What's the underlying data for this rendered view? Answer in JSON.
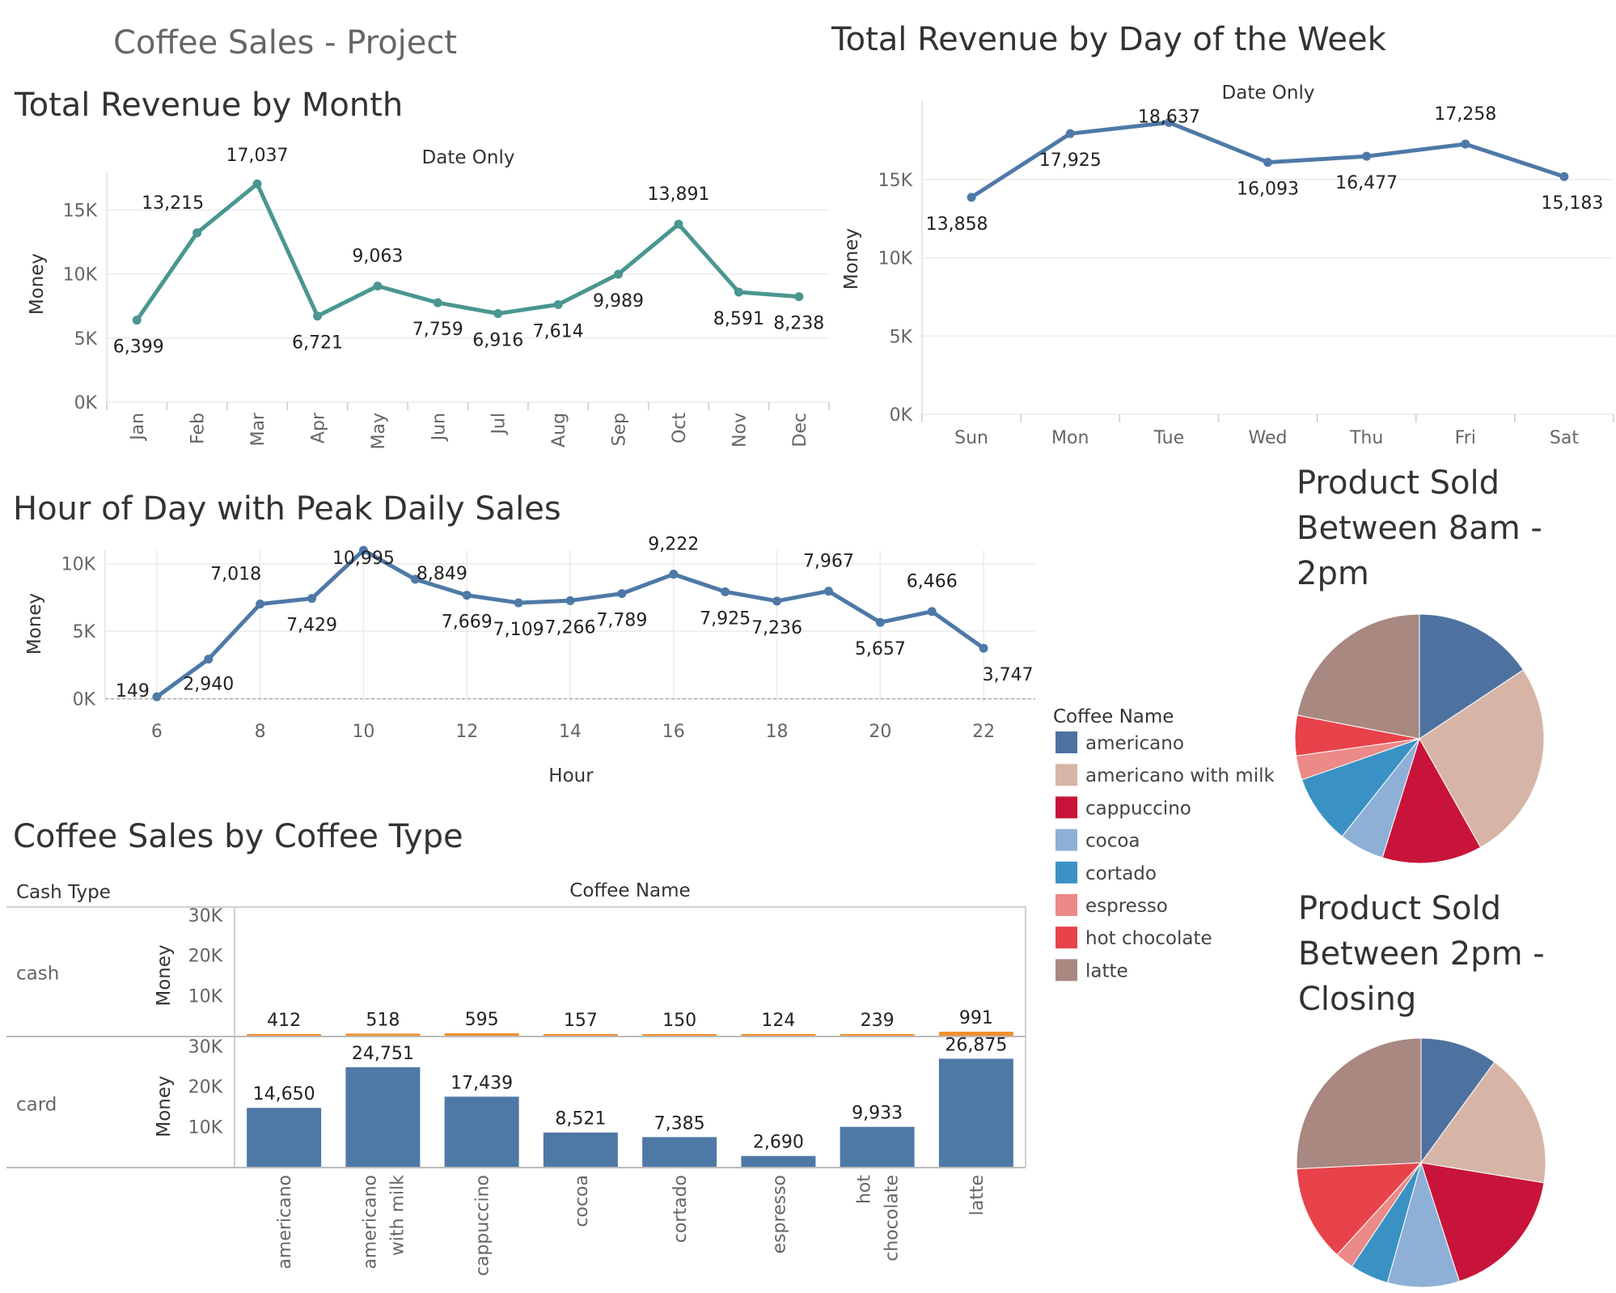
{
  "dashboard": {
    "title": "Coffee Sales - Project"
  },
  "chart_data": [
    {
      "id": "monthly",
      "type": "line",
      "title": "Total Revenue by Month",
      "column_header": "Date Only",
      "ylabel": "Money",
      "ylim": [
        0,
        18000
      ],
      "yticks": [
        0,
        5000,
        10000,
        15000
      ],
      "ytick_labels": [
        "0K",
        "5K",
        "10K",
        "15K"
      ],
      "categories": [
        "Jan",
        "Feb",
        "Mar",
        "Apr",
        "May",
        "Jun",
        "Jul",
        "Aug",
        "Sep",
        "Oct",
        "Nov",
        "Dec"
      ],
      "values": [
        6399,
        13215,
        17037,
        6721,
        9063,
        7759,
        6916,
        7614,
        9989,
        13891,
        8591,
        8238
      ],
      "value_labels": [
        "6,399",
        "13,215",
        "17,037",
        "6,721",
        "9,063",
        "7,759",
        "6,916",
        "7,614",
        "9,989",
        "13,891",
        "8,591",
        "8,238"
      ],
      "color": "#4a9690",
      "grid": true
    },
    {
      "id": "weekday",
      "type": "line",
      "title": "Total Revenue by Day of the Week",
      "column_header": "Date Only",
      "ylabel": "Money",
      "ylim": [
        0,
        20000
      ],
      "yticks": [
        0,
        5000,
        10000,
        15000
      ],
      "ytick_labels": [
        "0K",
        "5K",
        "10K",
        "15K"
      ],
      "categories": [
        "Sun",
        "Mon",
        "Tue",
        "Wed",
        "Thu",
        "Fri",
        "Sat"
      ],
      "values": [
        13858,
        17925,
        18637,
        16093,
        16477,
        17258,
        15183
      ],
      "value_labels": [
        "13,858",
        "17,925",
        "18,637",
        "16,093",
        "16,477",
        "17,258",
        "15,183"
      ],
      "color": "#4e79a7",
      "grid": true
    },
    {
      "id": "hourly",
      "type": "line",
      "title": "Hour of Day with Peak Daily Sales",
      "xlabel": "Hour",
      "ylabel": "Money",
      "ylim": [
        -200,
        11000
      ],
      "yticks": [
        0,
        5000,
        10000
      ],
      "ytick_labels": [
        "0K",
        "5K",
        "10K"
      ],
      "xlim": [
        5,
        23
      ],
      "xticks": [
        6,
        8,
        10,
        12,
        14,
        16,
        18,
        20,
        22
      ],
      "x": [
        6,
        7,
        8,
        9,
        10,
        11,
        12,
        13,
        14,
        15,
        16,
        17,
        18,
        19,
        20,
        21,
        22
      ],
      "values": [
        149,
        2940,
        7018,
        7429,
        10995,
        8849,
        7669,
        7109,
        7266,
        7789,
        9222,
        7925,
        7236,
        7967,
        5657,
        6466,
        3747
      ],
      "value_labels": [
        "149",
        "2,940",
        "7,018",
        "7,429",
        "10,995",
        "8,849",
        "7,669",
        "7,109",
        "7,266",
        "7,789",
        "9,222",
        "7,925",
        "7,236",
        "7,967",
        "5,657",
        "6,466",
        "3,747"
      ],
      "color": "#4e79a7",
      "grid": true
    },
    {
      "id": "coffee_type",
      "type": "bar",
      "title": "Coffee Sales by Coffee Type",
      "row_header": "Cash Type",
      "column_header": "Coffee Name",
      "ylabel": "Money",
      "ylim": [
        0,
        32000
      ],
      "yticks": [
        10000,
        20000,
        30000
      ],
      "ytick_labels": [
        "10K",
        "20K",
        "30K"
      ],
      "categories": [
        "americano",
        "americano with milk",
        "cappuccino",
        "cocoa",
        "cortado",
        "espresso",
        "hot chocolate",
        "latte"
      ],
      "category_lines": [
        [
          "americano"
        ],
        [
          "americano",
          "with milk"
        ],
        [
          "cappuccino"
        ],
        [
          "cocoa"
        ],
        [
          "cortado"
        ],
        [
          "espresso"
        ],
        [
          "hot",
          "chocolate"
        ],
        [
          "latte"
        ]
      ],
      "series": [
        {
          "name": "cash",
          "values": [
            412,
            518,
            595,
            157,
            150,
            124,
            239,
            991
          ],
          "value_labels": [
            "412",
            "518",
            "595",
            "157",
            "150",
            "124",
            "239",
            "991"
          ],
          "color": "#f28e2b"
        },
        {
          "name": "card",
          "values": [
            14650,
            24751,
            17439,
            8521,
            7385,
            2690,
            9933,
            26875
          ],
          "value_labels": [
            "14,650",
            "24,751",
            "17,439",
            "8,521",
            "7,385",
            "2,690",
            "9,933",
            "26,875"
          ],
          "color": "#4e79a7"
        }
      ]
    },
    {
      "id": "pie_morning",
      "type": "pie",
      "title_lines": [
        "Product Sold",
        "Between 8am -",
        "2pm"
      ],
      "labels": [
        "americano",
        "americano with milk",
        "cappuccino",
        "cocoa",
        "cortado",
        "espresso",
        "hot chocolate",
        "latte"
      ],
      "values": [
        15.0,
        25.0,
        12.4,
        5.6,
        8.6,
        3.0,
        5.0,
        21.0
      ]
    },
    {
      "id": "pie_afternoon",
      "type": "pie",
      "title_lines": [
        "Product Sold",
        "Between 2pm -",
        "Closing"
      ],
      "labels": [
        "americano",
        "americano with milk",
        "cappuccino",
        "cocoa",
        "cortado",
        "espresso",
        "hot chocolate",
        "latte"
      ],
      "values": [
        10.0,
        17.5,
        17.4,
        9.3,
        5.0,
        2.4,
        12.4,
        25.7
      ]
    }
  ],
  "legend": {
    "title": "Coffee Name",
    "placement": "right",
    "items": [
      {
        "label": "americano",
        "color": "#4e72a0"
      },
      {
        "label": "americano with milk",
        "color": "#d7b5a6"
      },
      {
        "label": "cappuccino",
        "color": "#c8143a"
      },
      {
        "label": "cocoa",
        "color": "#8fb0d6"
      },
      {
        "label": "cortado",
        "color": "#3a92c4"
      },
      {
        "label": "espresso",
        "color": "#eb8a86"
      },
      {
        "label": "hot chocolate",
        "color": "#e8434a"
      },
      {
        "label": "latte",
        "color": "#a88880"
      }
    ]
  }
}
